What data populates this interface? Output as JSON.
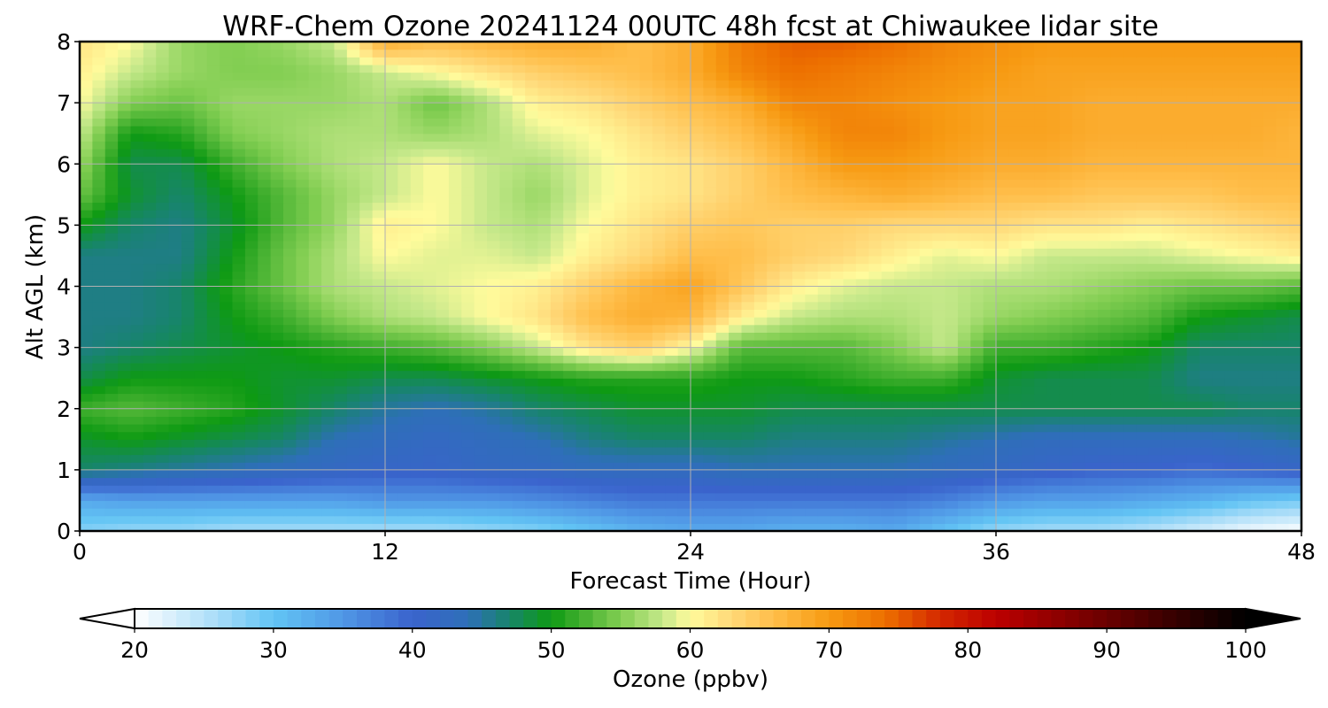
{
  "chart_data": {
    "type": "heatmap",
    "title": "WRF-Chem Ozone  20241124 00UTC 48h fcst at Chiwaukee lidar site",
    "xlabel": "Forecast Time (Hour)",
    "ylabel": "Alt AGL (km)",
    "xlim": [
      0,
      48
    ],
    "ylim": [
      0,
      8
    ],
    "x_ticks": [
      "0",
      "12",
      "24",
      "36",
      "48"
    ],
    "y_ticks": [
      "0",
      "1",
      "2",
      "3",
      "4",
      "5",
      "6",
      "7",
      "8"
    ],
    "grid": true,
    "x": [
      0,
      2,
      4,
      6,
      8,
      10,
      12,
      14,
      16,
      18,
      20,
      22,
      24,
      26,
      28,
      30,
      32,
      34,
      36,
      38,
      40,
      42,
      44,
      46,
      48
    ],
    "y": [
      0,
      0.5,
      1,
      1.5,
      2,
      2.5,
      3,
      3.5,
      4,
      4.5,
      5,
      5.5,
      6,
      6.5,
      7,
      7.5,
      8
    ],
    "z_units": "ppbv",
    "z": [
      [
        28,
        27,
        27,
        26,
        26,
        26,
        26,
        26,
        27,
        28,
        30,
        32,
        33,
        33,
        32,
        32,
        33,
        30,
        27,
        26,
        26,
        25,
        23,
        21,
        20
      ],
      [
        33,
        34,
        34,
        34,
        34,
        34,
        35,
        35,
        35,
        36,
        37,
        38,
        38,
        38,
        38,
        38,
        38,
        37,
        35,
        34,
        34,
        33,
        32,
        30,
        29
      ],
      [
        47,
        46,
        45,
        44,
        43,
        42,
        41,
        41,
        42,
        42,
        43,
        43,
        43,
        44,
        44,
        44,
        44,
        43,
        42,
        41,
        40,
        40,
        39,
        40,
        41
      ],
      [
        49,
        50,
        49,
        48,
        47,
        44,
        43,
        42,
        43,
        44,
        46,
        47,
        47,
        47,
        46,
        46,
        46,
        45,
        44,
        43,
        43,
        43,
        43,
        44,
        45
      ],
      [
        52,
        53,
        52,
        51,
        49,
        47,
        45,
        44,
        45,
        47,
        48,
        49,
        49,
        49,
        48,
        48,
        48,
        48,
        48,
        48,
        48,
        48,
        48,
        47,
        47
      ],
      [
        48,
        50,
        50,
        50,
        49,
        49,
        48,
        48,
        49,
        50,
        51,
        51,
        51,
        50,
        50,
        51,
        52,
        52,
        49,
        48,
        48,
        48,
        46,
        46,
        46
      ],
      [
        46,
        47,
        48,
        49,
        50,
        51,
        52,
        53,
        55,
        58,
        62,
        64,
        60,
        53,
        53,
        53,
        55,
        58,
        52,
        52,
        51,
        50,
        47,
        47,
        47
      ],
      [
        46,
        46,
        47,
        50,
        52,
        55,
        57,
        58,
        60,
        62,
        66,
        68,
        67,
        61,
        58,
        57,
        57,
        58,
        56,
        55,
        54,
        53,
        50,
        49,
        48
      ],
      [
        46,
        46,
        47,
        51,
        54,
        57,
        58,
        59,
        60,
        61,
        64,
        67,
        69,
        65,
        61,
        59,
        58,
        58,
        57,
        57,
        56,
        55,
        54,
        54,
        53
      ],
      [
        46,
        46,
        46,
        50,
        54,
        57,
        60,
        59,
        59,
        58,
        61,
        63,
        66,
        66,
        64,
        63,
        61,
        59,
        60,
        58,
        58,
        58,
        59,
        60,
        61
      ],
      [
        50,
        47,
        46,
        49,
        53,
        56,
        61,
        60,
        58,
        57,
        60,
        62,
        64,
        65,
        64,
        64,
        63,
        63,
        63,
        62,
        62,
        61,
        62,
        63,
        64
      ],
      [
        54,
        49,
        47,
        50,
        53,
        56,
        58,
        60,
        58,
        56,
        59,
        61,
        62,
        64,
        66,
        67,
        68,
        67,
        66,
        66,
        65,
        65,
        65,
        66,
        66
      ],
      [
        56,
        48,
        48,
        52,
        55,
        57,
        58,
        60,
        58,
        57,
        59,
        61,
        62,
        64,
        67,
        70,
        70,
        69,
        68,
        68,
        67,
        67,
        67,
        67,
        67
      ],
      [
        58,
        50,
        51,
        55,
        56,
        57,
        57,
        56,
        57,
        59,
        60,
        62,
        64,
        66,
        69,
        72,
        72,
        70,
        69,
        69,
        68,
        68,
        68,
        68,
        67
      ],
      [
        60,
        55,
        54,
        56,
        56,
        56,
        57,
        54,
        57,
        61,
        62,
        64,
        66,
        68,
        72,
        72,
        71,
        70,
        69,
        69,
        68,
        68,
        68,
        68,
        68
      ],
      [
        61,
        58,
        56,
        55,
        55,
        56,
        58,
        60,
        62,
        64,
        65,
        66,
        68,
        72,
        74,
        73,
        72,
        71,
        70,
        69,
        69,
        69,
        69,
        69,
        69
      ],
      [
        62,
        60,
        56,
        55,
        56,
        58,
        68,
        66,
        67,
        68,
        68,
        66,
        68,
        73,
        75,
        75,
        74,
        72,
        71,
        70,
        70,
        70,
        70,
        70,
        70
      ]
    ],
    "colorbar": {
      "label": "Ozone  (ppbv)",
      "range": [
        20,
        100
      ],
      "ticks": [
        "20",
        "30",
        "40",
        "50",
        "60",
        "70",
        "80",
        "90",
        "100"
      ],
      "extend": "both",
      "color_stops": [
        {
          "value": 20,
          "color": "#ffffff"
        },
        {
          "value": 26,
          "color": "#a8dcf8"
        },
        {
          "value": 30,
          "color": "#62c4f4"
        },
        {
          "value": 35,
          "color": "#5097e6"
        },
        {
          "value": 40,
          "color": "#3a63cc"
        },
        {
          "value": 44,
          "color": "#2e6fb8"
        },
        {
          "value": 47,
          "color": "#17856a"
        },
        {
          "value": 50,
          "color": "#0e9a13"
        },
        {
          "value": 52,
          "color": "#3fae2d"
        },
        {
          "value": 55,
          "color": "#82ce52"
        },
        {
          "value": 58,
          "color": "#c5e88a"
        },
        {
          "value": 60,
          "color": "#fffb9c"
        },
        {
          "value": 63,
          "color": "#ffd878"
        },
        {
          "value": 66,
          "color": "#ffbe4a"
        },
        {
          "value": 70,
          "color": "#f79a12"
        },
        {
          "value": 74,
          "color": "#ed7000"
        },
        {
          "value": 78,
          "color": "#d42800"
        },
        {
          "value": 82,
          "color": "#bc0000"
        },
        {
          "value": 90,
          "color": "#6a0000"
        },
        {
          "value": 100,
          "color": "#000000"
        }
      ]
    }
  }
}
